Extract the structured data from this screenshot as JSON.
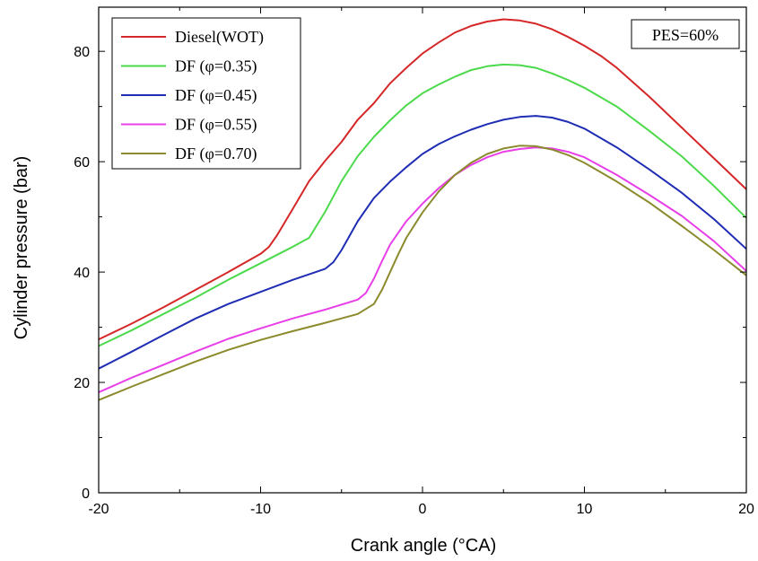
{
  "chart_data": {
    "type": "line",
    "title": "",
    "xlabel": "Crank angle (°CA)",
    "ylabel": "Cylinder pressure (bar)",
    "xlim": [
      -20,
      20
    ],
    "ylim": [
      0,
      88
    ],
    "xticks": [
      -20,
      -10,
      0,
      10,
      20
    ],
    "yticks": [
      0,
      20,
      40,
      60,
      80
    ],
    "grid": false,
    "legend_position": "top-left",
    "annotation": "PES=60%",
    "series": [
      {
        "name": "Diesel(WOT)",
        "color": "#d62728",
        "x": [
          -20,
          -18,
          -16,
          -14,
          -12,
          -10,
          -9.5,
          -9,
          -8,
          -7,
          -6,
          -5,
          -4,
          -3,
          -2,
          -1,
          0,
          1,
          2,
          3,
          4,
          5,
          6,
          7,
          8,
          9,
          10,
          11,
          12,
          14,
          16,
          18,
          20
        ],
        "y": [
          27.8,
          30.6,
          33.6,
          36.8,
          40.0,
          43.3,
          44.5,
          46.6,
          51.5,
          56.5,
          60.2,
          63.6,
          67.6,
          70.6,
          74.2,
          77.0,
          79.6,
          81.6,
          83.4,
          84.6,
          85.4,
          85.8,
          85.6,
          85.0,
          84.0,
          82.6,
          81.0,
          79.2,
          77.0,
          71.8,
          66.2,
          60.6,
          55.0
        ]
      },
      {
        "name": "DF (φ=0.35)",
        "color": "#4cd94c",
        "x": [
          -20,
          -18,
          -16,
          -14,
          -12,
          -10,
          -8,
          -7,
          -6,
          -5,
          -4,
          -3,
          -2,
          -1,
          0,
          1,
          2,
          3,
          4,
          5,
          6,
          7,
          8,
          9,
          10,
          12,
          14,
          16,
          18,
          20
        ],
        "y": [
          26.6,
          29.4,
          32.4,
          35.4,
          38.6,
          41.6,
          44.6,
          46.2,
          51.0,
          56.5,
          61.0,
          64.5,
          67.5,
          70.2,
          72.4,
          74.0,
          75.4,
          76.6,
          77.3,
          77.6,
          77.5,
          77.0,
          76.0,
          74.8,
          73.4,
          70.0,
          65.6,
          61.0,
          55.6,
          49.8
        ]
      },
      {
        "name": "DF (φ=0.45)",
        "color": "#1f2db4",
        "x": [
          -20,
          -18,
          -16,
          -14,
          -12,
          -10,
          -8,
          -6,
          -5.5,
          -5,
          -4,
          -3,
          -2,
          -1,
          0,
          1,
          2,
          3,
          4,
          5,
          6,
          7,
          8,
          9,
          10,
          12,
          14,
          16,
          18,
          20
        ],
        "y": [
          22.5,
          25.5,
          28.6,
          31.6,
          34.2,
          36.4,
          38.6,
          40.6,
          41.8,
          44.0,
          49.2,
          53.4,
          56.4,
          59.0,
          61.4,
          63.2,
          64.6,
          65.8,
          66.8,
          67.6,
          68.1,
          68.3,
          68.0,
          67.2,
          66.0,
          62.6,
          58.6,
          54.4,
          49.6,
          44.2
        ]
      },
      {
        "name": "DF (φ=0.55)",
        "color": "#e83fe8",
        "x": [
          -20,
          -18,
          -16,
          -14,
          -12,
          -10,
          -8,
          -6,
          -4,
          -3.5,
          -3,
          -2.5,
          -2,
          -1,
          0,
          1,
          2,
          3,
          4,
          5,
          6,
          7,
          8,
          9,
          10,
          12,
          14,
          16,
          18,
          20
        ],
        "y": [
          18.2,
          20.8,
          23.2,
          25.6,
          27.9,
          29.8,
          31.6,
          33.2,
          35.0,
          36.2,
          38.8,
          42.0,
          45.0,
          49.2,
          52.4,
          55.2,
          57.6,
          59.4,
          60.8,
          61.8,
          62.3,
          62.6,
          62.4,
          61.8,
          60.8,
          57.6,
          54.0,
          50.2,
          45.6,
          40.2
        ]
      },
      {
        "name": "DF (φ=0.70)",
        "color": "#8b8a2c",
        "x": [
          -20,
          -18,
          -16,
          -14,
          -12,
          -10,
          -8,
          -6,
          -4,
          -3,
          -2.5,
          -2,
          -1.5,
          -1,
          0,
          1,
          2,
          3,
          4,
          5,
          6,
          7,
          8,
          9,
          10,
          12,
          14,
          16,
          18,
          20
        ],
        "y": [
          16.8,
          19.2,
          21.5,
          23.8,
          25.9,
          27.7,
          29.3,
          30.8,
          32.4,
          34.2,
          36.8,
          40.0,
          43.2,
          46.2,
          50.8,
          54.6,
          57.6,
          59.8,
          61.4,
          62.4,
          62.9,
          62.8,
          62.2,
          61.2,
          59.8,
          56.4,
          52.6,
          48.4,
          44.0,
          39.4
        ]
      }
    ]
  }
}
